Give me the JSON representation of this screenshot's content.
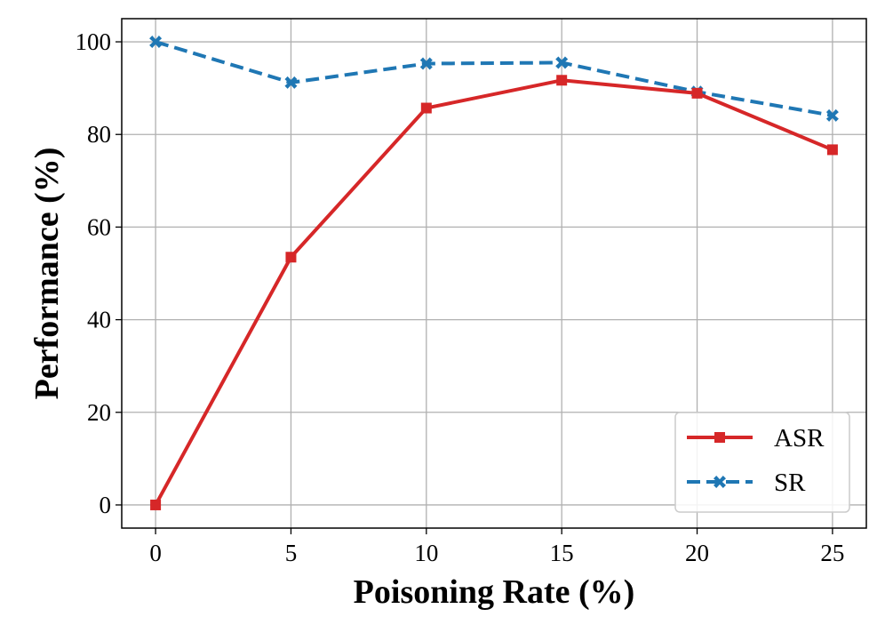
{
  "chart_data": {
    "type": "line",
    "title": "",
    "xlabel": "Poisoning Rate (%)",
    "ylabel": "Performance (%)",
    "x": [
      0,
      5,
      10,
      15,
      20,
      25
    ],
    "x_tick_labels": [
      "0",
      "5",
      "10",
      "15",
      "20",
      "25"
    ],
    "y_ticks": [
      0,
      20,
      40,
      60,
      80,
      100
    ],
    "y_tick_labels": [
      "0",
      "20",
      "40",
      "60",
      "80",
      "100"
    ],
    "xlim": [
      -1.25,
      26.25
    ],
    "ylim": [
      -5,
      105
    ],
    "grid": true,
    "legend_position": "lower-right",
    "series": [
      {
        "name": "ASR",
        "values": [
          0,
          53.5,
          85.7,
          91.7,
          88.9,
          76.7
        ],
        "color": "#d62728",
        "line_style": "solid",
        "marker": "square"
      },
      {
        "name": "SR",
        "values": [
          100,
          91.2,
          95.3,
          95.5,
          89.2,
          84.1
        ],
        "color": "#1f77b4",
        "line_style": "dashed",
        "marker": "x-filled"
      }
    ]
  }
}
